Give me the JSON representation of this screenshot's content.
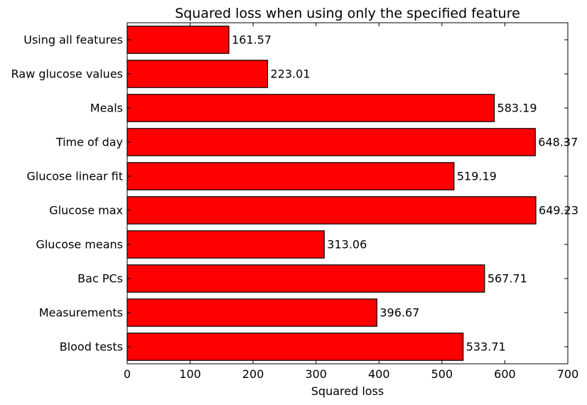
{
  "chart_data": {
    "type": "bar",
    "orientation": "horizontal",
    "title": "Squared loss when using only the specified feature",
    "xlabel": "Squared loss",
    "ylabel": "",
    "xlim": [
      0,
      700
    ],
    "xticks": [
      0,
      100,
      200,
      300,
      400,
      500,
      600,
      700
    ],
    "grid": false,
    "legend": "none",
    "bar_color": "#ff0000",
    "categories": [
      "Using all features",
      "Raw glucose values",
      "Meals",
      "Time of day",
      "Glucose linear fit",
      "Glucose max",
      "Glucose means",
      "Bac PCs",
      "Measurements",
      "Blood tests"
    ],
    "values": [
      161.57,
      223.01,
      583.19,
      648.37,
      519.19,
      649.23,
      313.06,
      567.71,
      396.67,
      533.71
    ],
    "data_labels": [
      "161.57",
      "223.01",
      "583.19",
      "648.37",
      "519.19",
      "649.23",
      "313.06",
      "567.71",
      "396.67",
      "533.71"
    ]
  }
}
